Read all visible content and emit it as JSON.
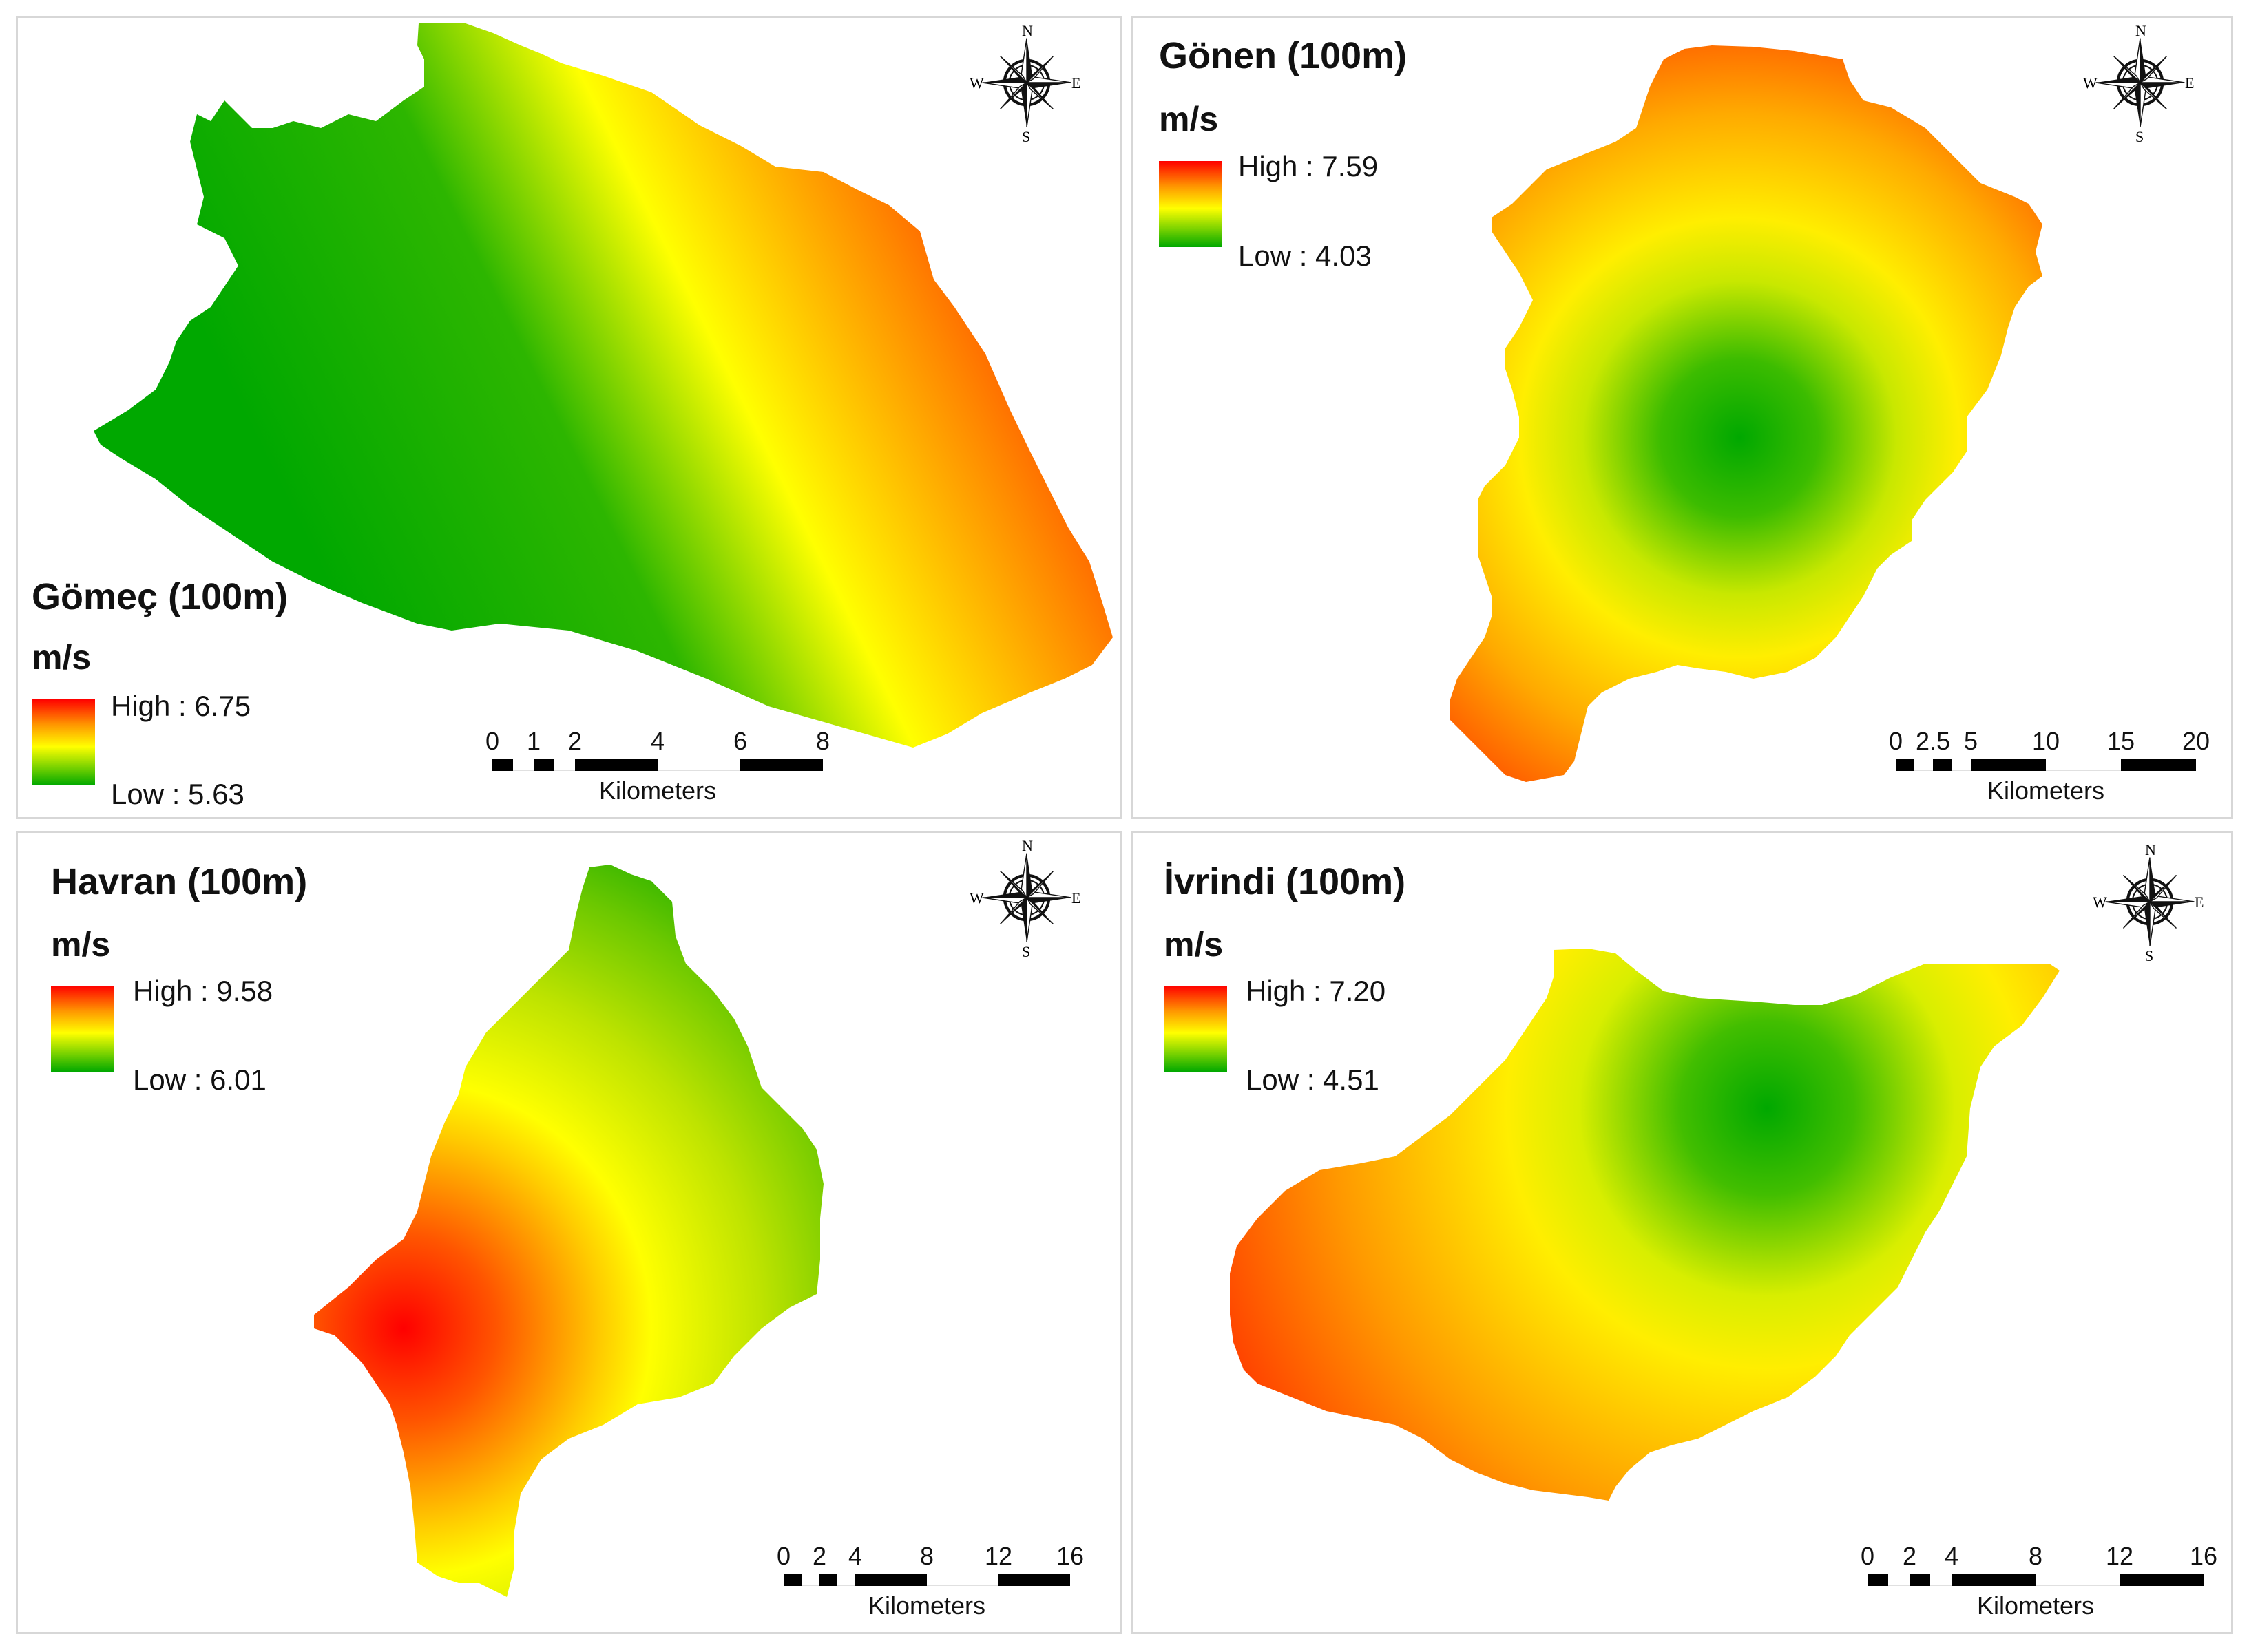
{
  "colors": {
    "high": "#ff0000",
    "mid": "#ffff00",
    "low": "#00a800",
    "border": "#d7d7d7"
  },
  "panels": [
    {
      "title": "Gömeç (100m)",
      "unit": "m/s",
      "legend": {
        "high": "High : 6.75",
        "low": "Low : 5.63",
        "high_value": 6.75,
        "low_value": 5.63
      },
      "compass": {
        "n": "N",
        "s": "S",
        "e": "E",
        "w": "W"
      },
      "scale": {
        "ticks": [
          "0",
          "1",
          "2",
          "4",
          "6",
          "8"
        ],
        "unit": "Kilometers",
        "max": 8
      }
    },
    {
      "title": "Gönen (100m)",
      "unit": "m/s",
      "legend": {
        "high": "High : 7.59",
        "low": "Low : 4.03",
        "high_value": 7.59,
        "low_value": 4.03
      },
      "compass": {
        "n": "N",
        "s": "S",
        "e": "E",
        "w": "W"
      },
      "scale": {
        "ticks": [
          "0",
          "2.5",
          "5",
          "10",
          "15",
          "20"
        ],
        "unit": "Kilometers",
        "max": 20
      }
    },
    {
      "title": "Havran (100m)",
      "unit": "m/s",
      "legend": {
        "high": "High : 9.58",
        "low": "Low : 6.01",
        "high_value": 9.58,
        "low_value": 6.01
      },
      "compass": {
        "n": "N",
        "s": "S",
        "e": "E",
        "w": "W"
      },
      "scale": {
        "ticks": [
          "0",
          "2",
          "4",
          "8",
          "12",
          "16"
        ],
        "unit": "Kilometers",
        "max": 16
      }
    },
    {
      "title": "İvrindi (100m)",
      "unit": "m/s",
      "legend": {
        "high": "High : 7.20",
        "low": "Low : 4.51",
        "high_value": 7.2,
        "low_value": 4.51
      },
      "compass": {
        "n": "N",
        "s": "S",
        "e": "E",
        "w": "W"
      },
      "scale": {
        "ticks": [
          "0",
          "2",
          "4",
          "8",
          "12",
          "16"
        ],
        "unit": "Kilometers",
        "max": 16
      }
    }
  ]
}
